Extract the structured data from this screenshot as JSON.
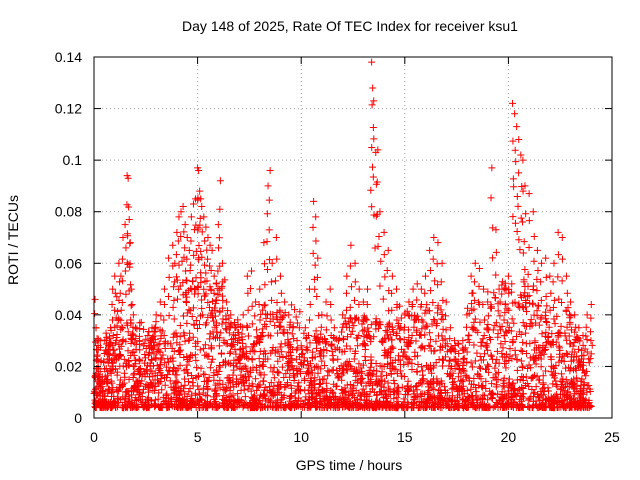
{
  "chart_data": {
    "type": "scatter",
    "title": "Day 148 of 2025, Rate Of TEC Index for receiver ksu1",
    "xlabel": "GPS time / hours",
    "ylabel": "ROTI / TECUs",
    "xlim": [
      0,
      25
    ],
    "ylim": [
      0,
      0.14
    ],
    "x_ticks": [
      0,
      5,
      10,
      15,
      20,
      25
    ],
    "x_tick_labels": [
      "0",
      "5",
      "10",
      "15",
      "20",
      "25"
    ],
    "y_ticks": [
      0,
      0.02,
      0.04,
      0.06,
      0.08,
      0.1,
      0.12,
      0.14
    ],
    "y_tick_labels": [
      "0",
      "0.02",
      "0.04",
      "0.06",
      "0.08",
      "0.1",
      "0.12",
      "0.14"
    ],
    "grid": true,
    "marker": "+",
    "color": "#ff0000",
    "series": [
      {
        "name": "ROTI",
        "note": "dense cloud of points spanning 0 to 24 hours; baseline roughly 0.005 to 0.025 TECU with spikes listed below",
        "x": [
          0.05,
          0.1,
          0.15,
          0.2,
          0.3,
          0.4,
          0.5,
          0.6,
          0.7,
          0.8,
          0.9,
          1.0,
          1.1,
          1.2,
          1.3,
          1.4,
          1.5,
          1.6,
          1.65,
          1.7,
          1.75,
          1.8,
          1.9,
          2.0,
          2.2,
          2.4,
          2.6,
          2.8,
          3.0,
          3.2,
          3.4,
          3.6,
          3.8,
          3.9,
          4.0,
          4.1,
          4.2,
          4.3,
          4.4,
          4.5,
          4.6,
          4.7,
          4.8,
          4.9,
          5.0,
          5.05,
          5.1,
          5.15,
          5.2,
          5.3,
          5.4,
          5.5,
          5.6,
          5.7,
          5.8,
          5.9,
          6.0,
          6.1,
          6.2,
          6.4,
          6.6,
          6.8,
          7.0,
          7.2,
          7.4,
          7.6,
          7.8,
          8.0,
          8.2,
          8.4,
          8.5,
          8.6,
          8.8,
          9.0,
          9.2,
          9.4,
          9.6,
          9.8,
          10.0,
          10.2,
          10.4,
          10.6,
          10.7,
          10.8,
          11.0,
          11.2,
          11.4,
          11.6,
          11.8,
          12.0,
          12.2,
          12.4,
          12.6,
          12.8,
          13.0,
          13.2,
          13.4,
          13.45,
          13.5,
          13.6,
          13.7,
          13.8,
          14.0,
          14.2,
          14.4,
          14.6,
          14.8,
          15.0,
          15.2,
          15.4,
          15.6,
          15.8,
          16.0,
          16.2,
          16.4,
          16.6,
          16.8,
          17.0,
          17.2,
          17.4,
          17.6,
          17.8,
          18.0,
          18.2,
          18.4,
          18.6,
          18.8,
          19.0,
          19.2,
          19.4,
          19.6,
          19.8,
          20.0,
          20.2,
          20.3,
          20.4,
          20.5,
          20.6,
          20.7,
          20.8,
          21.0,
          21.2,
          21.4,
          21.6,
          21.8,
          22.0,
          22.2,
          22.4,
          22.6,
          22.8,
          23.0,
          23.2,
          23.4,
          23.6,
          23.8,
          24.0
        ],
        "y": [
          0.046,
          0.035,
          0.03,
          0.022,
          0.018,
          0.016,
          0.025,
          0.03,
          0.028,
          0.035,
          0.05,
          0.055,
          0.047,
          0.06,
          0.055,
          0.07,
          0.075,
          0.094,
          0.093,
          0.077,
          0.068,
          0.05,
          0.04,
          0.035,
          0.03,
          0.028,
          0.032,
          0.035,
          0.04,
          0.045,
          0.05,
          0.062,
          0.067,
          0.06,
          0.072,
          0.078,
          0.08,
          0.082,
          0.075,
          0.07,
          0.065,
          0.078,
          0.083,
          0.085,
          0.097,
          0.096,
          0.088,
          0.085,
          0.082,
          0.078,
          0.074,
          0.07,
          0.067,
          0.065,
          0.055,
          0.052,
          0.075,
          0.092,
          0.06,
          0.045,
          0.04,
          0.035,
          0.03,
          0.04,
          0.055,
          0.057,
          0.045,
          0.05,
          0.068,
          0.09,
          0.096,
          0.06,
          0.07,
          0.055,
          0.045,
          0.04,
          0.035,
          0.03,
          0.028,
          0.035,
          0.05,
          0.084,
          0.078,
          0.062,
          0.04,
          0.045,
          0.05,
          0.035,
          0.03,
          0.04,
          0.055,
          0.067,
          0.06,
          0.05,
          0.045,
          0.05,
          0.138,
          0.128,
          0.123,
          0.103,
          0.104,
          0.08,
          0.072,
          0.065,
          0.055,
          0.05,
          0.035,
          0.04,
          0.045,
          0.05,
          0.052,
          0.05,
          0.055,
          0.065,
          0.07,
          0.068,
          0.06,
          0.045,
          0.035,
          0.03,
          0.025,
          0.03,
          0.04,
          0.055,
          0.06,
          0.058,
          0.05,
          0.045,
          0.097,
          0.073,
          0.045,
          0.05,
          0.055,
          0.122,
          0.118,
          0.113,
          0.108,
          0.102,
          0.1,
          0.09,
          0.087,
          0.08,
          0.065,
          0.06,
          0.062,
          0.055,
          0.06,
          0.072,
          0.07,
          0.055,
          0.045,
          0.04,
          0.035,
          0.032,
          0.04,
          0.044
        ]
      }
    ]
  }
}
